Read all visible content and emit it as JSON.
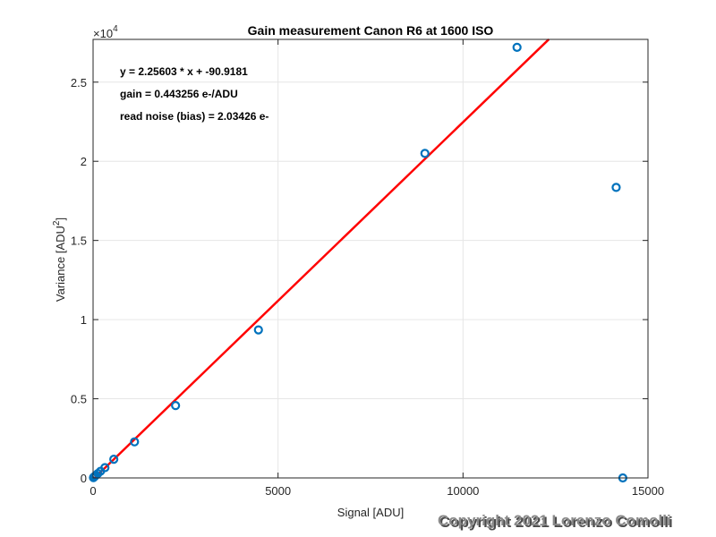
{
  "chart_data": {
    "type": "scatter",
    "title": "Gain measurement Canon R6 at 1600 ISO",
    "xlabel": "Signal [ADU]",
    "ylabel": "Variance [ADU",
    "ylabel_sup": "2",
    "ylabel_end": "]",
    "xlim": [
      0,
      15000
    ],
    "ylim": [
      0,
      27700
    ],
    "x_ticks": [
      0,
      5000,
      10000,
      15000
    ],
    "x_tick_labels": [
      "0",
      "5000",
      "10000",
      "15000"
    ],
    "y_ticks": [
      0,
      5000,
      10000,
      15000,
      20000,
      25000
    ],
    "y_tick_labels": [
      "0",
      "0.5",
      "1",
      "1.5",
      "2",
      "2.5"
    ],
    "y_exponent_prefix": "×10",
    "y_exponent": "4",
    "grid": true,
    "series": [
      {
        "kind": "points",
        "color": "#0072bd",
        "x": [
          10,
          25,
          50,
          80,
          130,
          200,
          320,
          560,
          1120,
          2230,
          4470,
          8970,
          11460,
          14140,
          14320
        ],
        "y": [
          20,
          60,
          110,
          180,
          280,
          420,
          650,
          1180,
          2280,
          4570,
          9350,
          20500,
          27200,
          18350,
          0
        ]
      },
      {
        "kind": "fit-line",
        "color": "#ff0000",
        "slope": 2.25603,
        "intercept": -90.9181,
        "x_range": [
          40,
          12320
        ]
      }
    ],
    "annotations": [
      "y = 2.25603 * x + -90.9181",
      "gain = 0.443256 e-/ADU",
      "read noise (bias) = 2.03426 e-"
    ]
  },
  "watermark": "Copyright 2021 Lorenzo Comolli"
}
